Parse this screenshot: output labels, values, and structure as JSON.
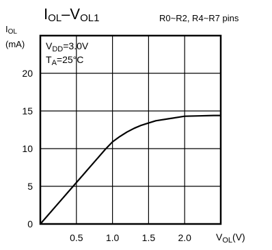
{
  "chart_data": {
    "type": "line",
    "title": {
      "main": "I",
      "sub1": "OL",
      "dash": "–V",
      "sub2": "OL1"
    },
    "subtitle": "R0~R2, R4~R7 pins",
    "conditions": [
      {
        "pre": "V",
        "sub": "DD",
        "post": "=3.0V"
      },
      {
        "pre": "T",
        "sub": "A",
        "post": "=25°C"
      }
    ],
    "ylabel": {
      "pre": "I",
      "sub": "OL",
      "unit": "(mA)"
    },
    "xlabel": {
      "pre": "V",
      "sub": "OL",
      "post": "(V)"
    },
    "xlim": [
      0,
      2.5
    ],
    "ylim": [
      0,
      25
    ],
    "xticks": [
      0.5,
      1.0,
      1.5,
      2.0
    ],
    "xtick_labels": [
      "0.5",
      "1.0",
      "1.5",
      "2.0"
    ],
    "yticks": [
      0,
      5,
      10,
      15,
      20
    ],
    "ytick_labels": [
      "0",
      "5",
      "10",
      "15",
      "20"
    ],
    "grid": true,
    "series": [
      {
        "x": [
          0.0,
          0.1,
          0.2,
          0.3,
          0.4,
          0.5,
          0.6,
          0.7,
          0.8,
          0.9,
          1.0,
          1.1,
          1.2,
          1.3,
          1.4,
          1.5,
          1.6,
          1.8,
          2.0,
          2.2,
          2.4,
          2.5
        ],
        "values": [
          0.0,
          1.1,
          2.2,
          3.3,
          4.4,
          5.5,
          6.6,
          7.7,
          8.8,
          9.9,
          10.9,
          11.6,
          12.2,
          12.7,
          13.1,
          13.4,
          13.7,
          14.0,
          14.3,
          14.35,
          14.4,
          14.4
        ],
        "color": "#000000"
      }
    ]
  }
}
